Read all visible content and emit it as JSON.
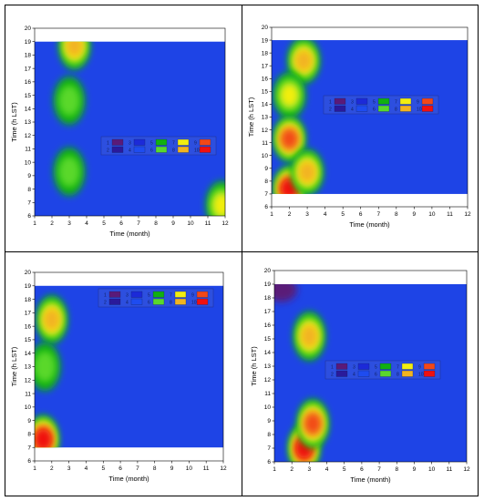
{
  "chart_data": [
    {
      "type": "contour",
      "xlabel": "Time (month)",
      "ylabel": "Time (h LST)",
      "xlim": [
        1,
        12
      ],
      "ylim": [
        6,
        20
      ],
      "data_ylim": [
        6,
        19
      ],
      "xticks": [
        "1",
        "2",
        "3",
        "4",
        "5",
        "6",
        "7",
        "8",
        "9",
        "10",
        "11",
        "12"
      ],
      "yticks": [
        "6",
        "7",
        "8",
        "9",
        "10",
        "11",
        "12",
        "13",
        "14",
        "15",
        "16",
        "17",
        "18",
        "19",
        "20"
      ],
      "legend": [
        "1",
        "2",
        "3",
        "4",
        "5",
        "6",
        "7",
        "8",
        "9",
        "10"
      ],
      "legend_position": "right-middle",
      "grid": false,
      "hotspots": [
        {
          "x": 3.0,
          "y": 14.6,
          "level": 6
        },
        {
          "x": 3.0,
          "y": 9.3,
          "level": 6
        },
        {
          "x": 3.3,
          "y": 18.7,
          "level": 8
        },
        {
          "x": 11.8,
          "y": 6.8,
          "level": 7
        },
        {
          "x": 8.2,
          "y": 8.2,
          "level": 4
        }
      ]
    },
    {
      "type": "contour",
      "xlabel": "Time (month)",
      "ylabel": "Time (h LST)",
      "xlim": [
        1,
        12
      ],
      "ylim": [
        6,
        20
      ],
      "data_ylim": [
        7,
        19
      ],
      "xticks": [
        "1",
        "2",
        "3",
        "4",
        "5",
        "6",
        "7",
        "8",
        "9",
        "10",
        "11",
        "12"
      ],
      "yticks": [
        "6",
        "7",
        "8",
        "9",
        "10",
        "11",
        "12",
        "13",
        "14",
        "15",
        "16",
        "17",
        "18",
        "19",
        "20"
      ],
      "legend": [
        "1",
        "2",
        "3",
        "4",
        "5",
        "6",
        "7",
        "8",
        "9",
        "10"
      ],
      "legend_position": "right-middle",
      "grid": false,
      "hotspots": [
        {
          "x": 2.8,
          "y": 17.4,
          "level": 8
        },
        {
          "x": 2.0,
          "y": 14.7,
          "level": 7
        },
        {
          "x": 2.0,
          "y": 11.3,
          "level": 9
        },
        {
          "x": 2.0,
          "y": 7.4,
          "level": 10
        },
        {
          "x": 3.0,
          "y": 8.7,
          "level": 8
        }
      ]
    },
    {
      "type": "contour",
      "xlabel": "Time (month)",
      "ylabel": "Time (h LST)",
      "xlim": [
        1,
        12
      ],
      "ylim": [
        6,
        20
      ],
      "data_ylim": [
        7,
        19
      ],
      "xticks": [
        "1",
        "2",
        "3",
        "4",
        "5",
        "6",
        "7",
        "8",
        "9",
        "10",
        "11",
        "12"
      ],
      "yticks": [
        "6",
        "7",
        "8",
        "9",
        "10",
        "11",
        "12",
        "13",
        "14",
        "15",
        "16",
        "17",
        "18",
        "19",
        "20"
      ],
      "legend": [
        "1",
        "2",
        "3",
        "4",
        "5",
        "6",
        "7",
        "8",
        "9",
        "10"
      ],
      "legend_position": "right-top",
      "grid": false,
      "hotspots": [
        {
          "x": 2.0,
          "y": 16.5,
          "level": 8
        },
        {
          "x": 1.6,
          "y": 13.0,
          "level": 6
        },
        {
          "x": 1.5,
          "y": 7.6,
          "level": 10
        }
      ]
    },
    {
      "type": "contour",
      "xlabel": "Time (month)",
      "ylabel": "Time (h LST)",
      "xlim": [
        1,
        12
      ],
      "ylim": [
        6,
        20
      ],
      "data_ylim": [
        6,
        19
      ],
      "xticks": [
        "1",
        "2",
        "3",
        "4",
        "5",
        "6",
        "7",
        "8",
        "9",
        "10",
        "11",
        "12"
      ],
      "yticks": [
        "6",
        "7",
        "8",
        "9",
        "10",
        "11",
        "12",
        "13",
        "14",
        "15",
        "16",
        "17",
        "18",
        "19",
        "20"
      ],
      "legend": [
        "1",
        "2",
        "3",
        "4",
        "5",
        "6",
        "7",
        "8",
        "9",
        "10"
      ],
      "legend_position": "right-middle",
      "grid": false,
      "hotspots": [
        {
          "x": 3.0,
          "y": 15.2,
          "level": 8
        },
        {
          "x": 2.7,
          "y": 7.0,
          "level": 10
        },
        {
          "x": 3.2,
          "y": 8.8,
          "level": 9
        },
        {
          "x": 1.4,
          "y": 18.6,
          "level": 1
        }
      ]
    }
  ],
  "colors": {
    "level_1": "#5a1a78",
    "level_2": "#2a1a9a",
    "level_3": "#1c2ad8",
    "level_4": "#1e4cf0",
    "level_5": "#11b011",
    "level_6": "#5ad82c",
    "level_7": "#f2ee10",
    "level_8": "#f2b420",
    "level_9": "#f24818",
    "level_10": "#f01010",
    "background": "#1e44e6"
  }
}
